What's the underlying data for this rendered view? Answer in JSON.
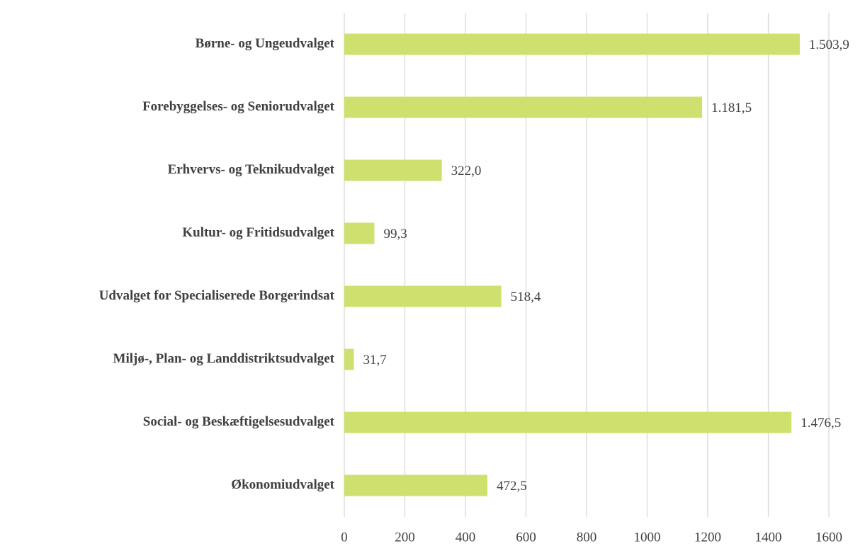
{
  "chart_data": {
    "type": "bar",
    "orientation": "horizontal",
    "categories": [
      "Børne- og Ungeudvalget",
      "Forebyggelses- og Seniorudvalget",
      "Erhvervs- og Teknikudvalget",
      "Kultur- og Fritidsudvalget",
      "Udvalget for Specialiserede Borgerindsat",
      "Miljø-, Plan- og Landdistriktsudvalget",
      "Social- og Beskæftigelsesudvalget",
      "Økonomiudvalget"
    ],
    "values": [
      1503.9,
      1181.5,
      322.0,
      99.3,
      518.4,
      31.7,
      1476.5,
      472.5
    ],
    "value_labels": [
      "1.503,9",
      "1.181,5",
      "322,0",
      "99,3",
      "518,4",
      "31,7",
      "1.476,5",
      "472,5"
    ],
    "color": "#cfe06f",
    "xlim": [
      0,
      1600
    ],
    "xticks": [
      0,
      200,
      400,
      600,
      800,
      1000,
      1200,
      1400,
      1600
    ],
    "grid": true
  }
}
